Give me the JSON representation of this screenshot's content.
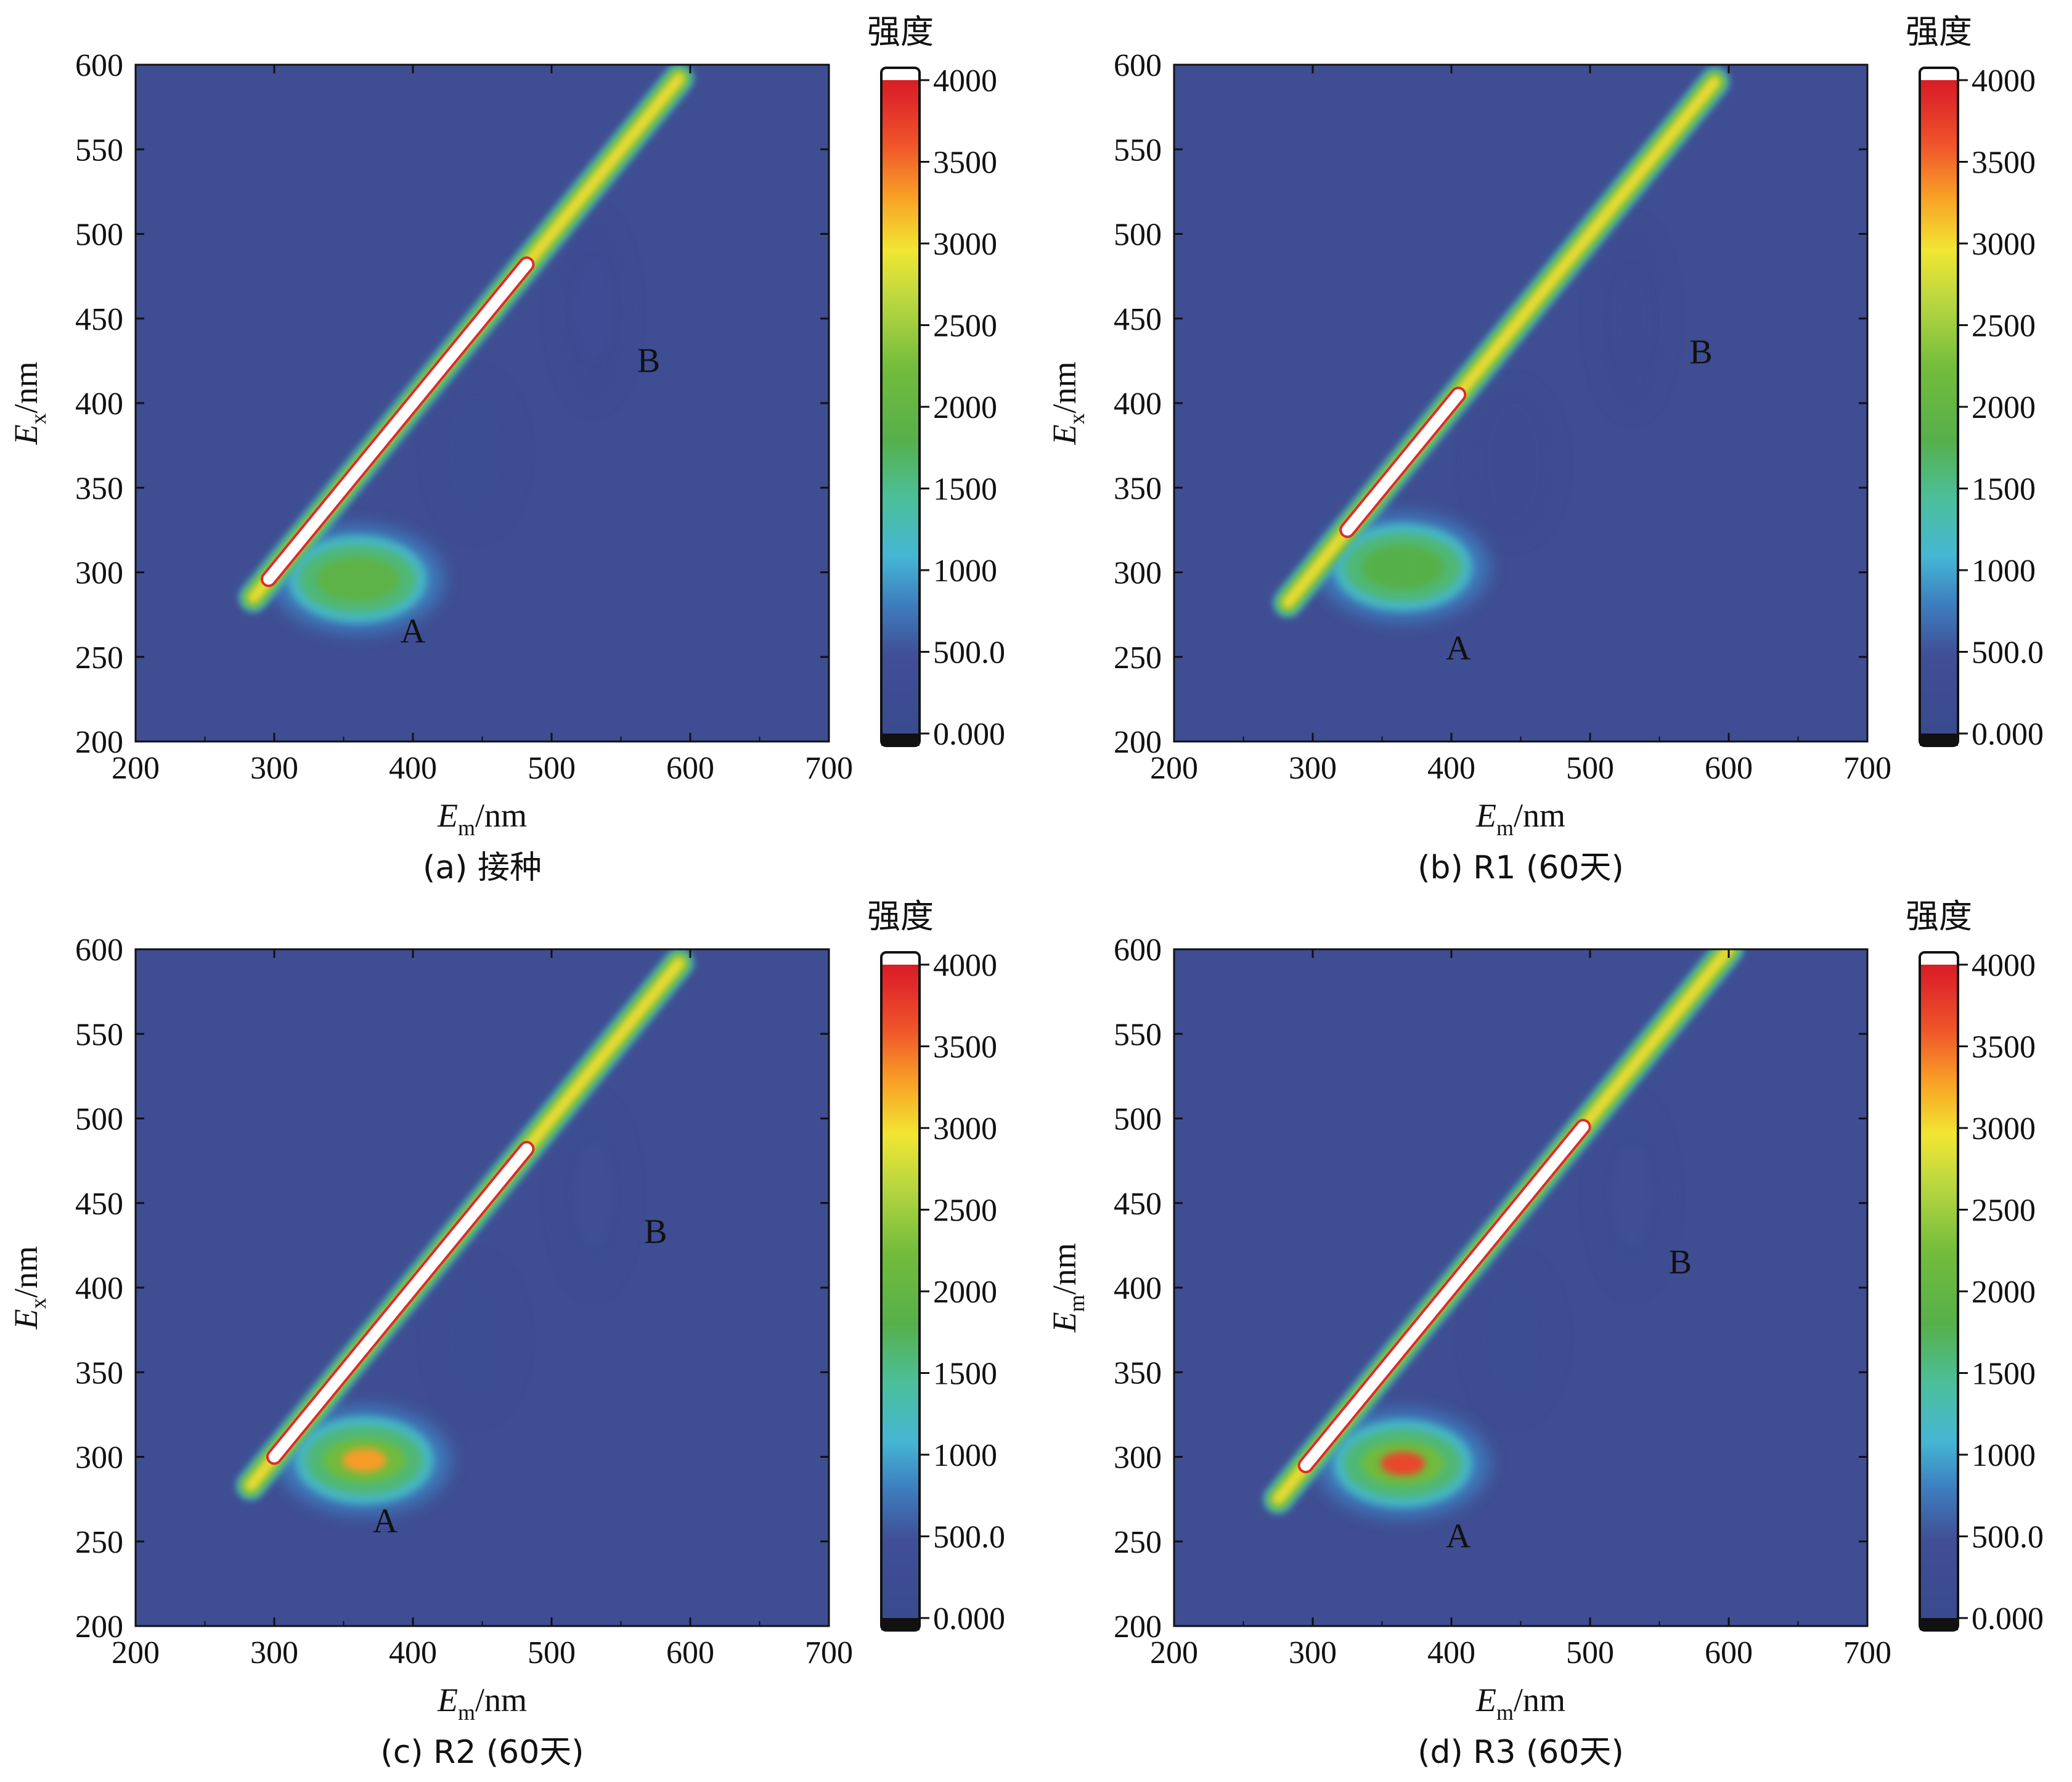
{
  "figure": {
    "colorbar_title": "强度"
  },
  "chart_data": [
    {
      "type": "heatmap",
      "id": "a",
      "caption": "(a) 接种",
      "xlabel": "E",
      "xlabel_sub": "m",
      "xlabel_unit": "/nm",
      "ylabel": "E",
      "ylabel_sub": "x",
      "ylabel_unit": "/nm",
      "xlim": [
        200,
        700
      ],
      "ylim": [
        200,
        600
      ],
      "xticks": [
        200,
        300,
        400,
        500,
        600,
        700
      ],
      "yticks": [
        200,
        250,
        300,
        350,
        400,
        450,
        500,
        550,
        600
      ],
      "colorbar": {
        "title": "强度",
        "range": [
          0,
          4000
        ],
        "tick_labels": [
          "4000",
          "3500",
          "3000",
          "2500",
          "2000",
          "1500",
          "1000",
          "500.0",
          "0.000"
        ]
      },
      "annotations": [
        {
          "text": "A",
          "x": 400,
          "y": 265
        },
        {
          "text": "B",
          "x": 570,
          "y": 425
        }
      ],
      "features": {
        "rayleigh_line": {
          "from_ex": 285,
          "to_ex": 592,
          "saturated_ex": [
            296,
            482
          ]
        },
        "peak_A": {
          "em": 350,
          "ex": 288,
          "intensity": 1900
        },
        "region_B": {
          "em": 530,
          "ex": 455,
          "intensity": 350
        }
      }
    },
    {
      "type": "heatmap",
      "id": "b",
      "caption": "(b) R1 (60天)",
      "xlabel": "E",
      "xlabel_sub": "m",
      "xlabel_unit": "/nm",
      "ylabel": "E",
      "ylabel_sub": "x",
      "ylabel_unit": "/nm",
      "xlim": [
        200,
        700
      ],
      "ylim": [
        200,
        600
      ],
      "xticks": [
        200,
        300,
        400,
        500,
        600,
        700
      ],
      "yticks": [
        200,
        250,
        300,
        350,
        400,
        450,
        500,
        550,
        600
      ],
      "colorbar": {
        "title": "强度",
        "range": [
          0,
          4000
        ],
        "tick_labels": [
          "4000",
          "3500",
          "3000",
          "2500",
          "2000",
          "1500",
          "1000",
          "500.0",
          "0.000"
        ]
      },
      "annotations": [
        {
          "text": "A",
          "x": 405,
          "y": 255
        },
        {
          "text": "B",
          "x": 580,
          "y": 430
        }
      ],
      "features": {
        "rayleigh_line": {
          "from_ex": 282,
          "to_ex": 590,
          "saturated_ex": [
            325,
            405
          ]
        },
        "peak_A": {
          "em": 355,
          "ex": 295,
          "intensity": 1800
        },
        "region_B": {
          "em": 530,
          "ex": 450,
          "intensity": 300
        }
      }
    },
    {
      "type": "heatmap",
      "id": "c",
      "caption": "(c) R2 (60天)",
      "xlabel": "E",
      "xlabel_sub": "m",
      "xlabel_unit": "/nm",
      "ylabel": "E",
      "ylabel_sub": "x",
      "ylabel_unit": "/nm",
      "xlim": [
        200,
        700
      ],
      "ylim": [
        200,
        600
      ],
      "xticks": [
        200,
        300,
        400,
        500,
        600,
        700
      ],
      "yticks": [
        200,
        250,
        300,
        350,
        400,
        450,
        500,
        550,
        600
      ],
      "colorbar": {
        "title": "强度",
        "range": [
          0,
          4000
        ],
        "tick_labels": [
          "4000",
          "3500",
          "3000",
          "2500",
          "2000",
          "1500",
          "1000",
          "500.0",
          "0.000"
        ]
      },
      "annotations": [
        {
          "text": "A",
          "x": 380,
          "y": 262
        },
        {
          "text": "B",
          "x": 575,
          "y": 433
        }
      ],
      "features": {
        "rayleigh_line": {
          "from_ex": 283,
          "to_ex": 592,
          "saturated_ex": [
            300,
            482
          ]
        },
        "peak_A": {
          "em": 355,
          "ex": 290,
          "intensity": 3300
        },
        "region_B": {
          "em": 530,
          "ex": 455,
          "intensity": 450
        }
      }
    },
    {
      "type": "heatmap",
      "id": "d",
      "caption": "(d) R3 (60天)",
      "xlabel": "E",
      "xlabel_sub": "m",
      "xlabel_unit": "/nm",
      "ylabel": "E",
      "ylabel_sub": "m",
      "ylabel_unit": "/nm",
      "xlim": [
        200,
        700
      ],
      "ylim": [
        200,
        600
      ],
      "xticks": [
        200,
        300,
        400,
        500,
        600,
        700
      ],
      "yticks": [
        200,
        250,
        300,
        350,
        400,
        450,
        500,
        550,
        600
      ],
      "colorbar": {
        "title": "强度",
        "range": [
          0,
          4000
        ],
        "tick_labels": [
          "4000",
          "3500",
          "3000",
          "2500",
          "2000",
          "1500",
          "1000",
          "500.0",
          "0.000"
        ]
      },
      "annotations": [
        {
          "text": "A",
          "x": 405,
          "y": 253
        },
        {
          "text": "B",
          "x": 565,
          "y": 415
        }
      ],
      "features": {
        "rayleigh_line": {
          "from_ex": 275,
          "to_ex": 600,
          "saturated_ex": [
            295,
            495
          ]
        },
        "peak_A": {
          "em": 355,
          "ex": 288,
          "intensity": 3700
        },
        "region_B": {
          "em": 530,
          "ex": 455,
          "intensity": 450
        }
      }
    }
  ]
}
